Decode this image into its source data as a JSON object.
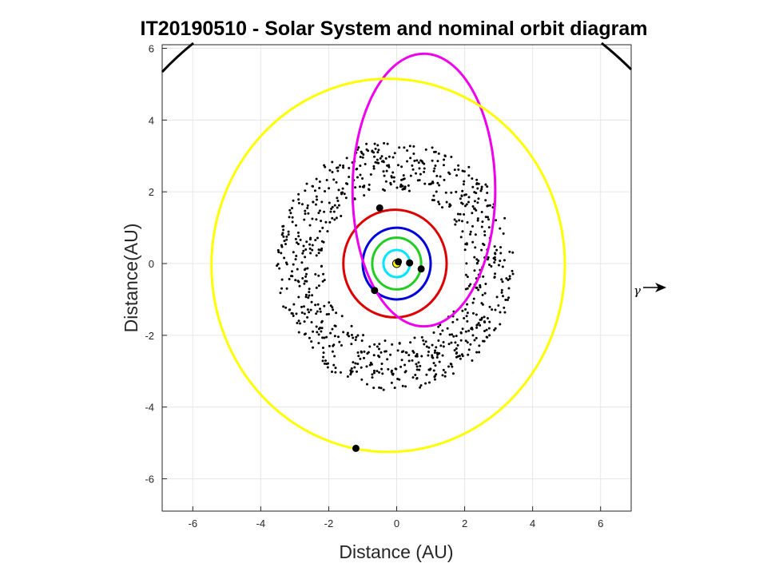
{
  "chart_data": {
    "type": "scatter",
    "title": "IT20190510 - Solar System and nominal orbit diagram",
    "xlabel": "Distance (AU)",
    "ylabel": "Distance(AU)",
    "xlim": [
      -6.9,
      6.9
    ],
    "ylim": [
      -6.9,
      6.1
    ],
    "xticks": [
      -6,
      -4,
      -2,
      0,
      2,
      4,
      6
    ],
    "yticks": [
      -6,
      -4,
      -2,
      0,
      2,
      4,
      6
    ],
    "grid": true,
    "vernal_equinox_label": "γ",
    "sun": {
      "x": 0,
      "y": 0,
      "color": "#ffff00"
    },
    "orbits": [
      {
        "cx": 0.0,
        "cy": 0.0,
        "a": 0.39,
        "b": 0.38,
        "color": "#00e5ff"
      },
      {
        "cx": 0.0,
        "cy": 0.0,
        "a": 0.72,
        "b": 0.72,
        "color": "#22cc22"
      },
      {
        "cx": 0.0,
        "cy": 0.0,
        "a": 1.0,
        "b": 1.0,
        "color": "#0000dd"
      },
      {
        "cx": -0.05,
        "cy": 0.0,
        "a": 1.52,
        "b": 1.5,
        "color": "#dd0000"
      },
      {
        "cx": 0.8,
        "cy": 2.05,
        "a": 2.1,
        "b": 3.8,
        "color": "#ee00ee"
      },
      {
        "cx": -0.25,
        "cy": -0.05,
        "a": 5.2,
        "b": 5.2,
        "color": "#ffff00"
      }
    ],
    "planets": [
      {
        "x": 0.05,
        "y": 0.05
      },
      {
        "x": 0.38,
        "y": 0.02
      },
      {
        "x": 0.72,
        "y": -0.15
      },
      {
        "x": -0.65,
        "y": -0.75
      },
      {
        "x": -0.5,
        "y": 1.55
      },
      {
        "x": -1.2,
        "y": -5.15
      }
    ],
    "asteroid_belt": {
      "r_min": 2.1,
      "r_max": 3.5,
      "cx": -0.05,
      "cy": -0.05,
      "count": 850,
      "color": "#000000"
    }
  }
}
